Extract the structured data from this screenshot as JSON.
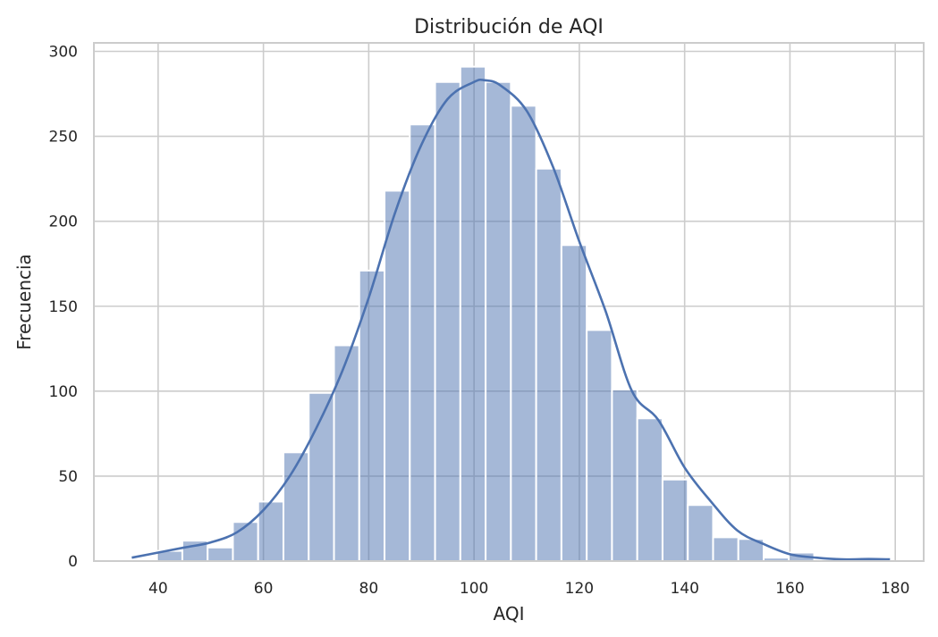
{
  "chart_data": {
    "type": "bar",
    "title": "Distribución de AQI",
    "xlabel": "AQI",
    "ylabel": "Frecuencia",
    "xlim": [
      27.8,
      185.4
    ],
    "ylim": [
      0,
      305
    ],
    "xticks": [
      40,
      60,
      80,
      100,
      120,
      140,
      160,
      180
    ],
    "yticks": [
      0,
      50,
      100,
      150,
      200,
      250,
      300
    ],
    "grid": true,
    "bar_color": "#4c72b0",
    "bar_alpha": 0.5,
    "kde_color": "#4c72b0",
    "bins": [
      {
        "x0": 35.0,
        "x1": 39.8,
        "count": 1
      },
      {
        "x0": 39.8,
        "x1": 44.6,
        "count": 6
      },
      {
        "x0": 44.6,
        "x1": 49.4,
        "count": 12
      },
      {
        "x0": 49.4,
        "x1": 54.2,
        "count": 8
      },
      {
        "x0": 54.2,
        "x1": 59.0,
        "count": 23
      },
      {
        "x0": 59.0,
        "x1": 63.8,
        "count": 35
      },
      {
        "x0": 63.8,
        "x1": 68.6,
        "count": 64
      },
      {
        "x0": 68.6,
        "x1": 73.4,
        "count": 99
      },
      {
        "x0": 73.4,
        "x1": 78.2,
        "count": 127
      },
      {
        "x0": 78.2,
        "x1": 83.0,
        "count": 171
      },
      {
        "x0": 83.0,
        "x1": 87.8,
        "count": 218
      },
      {
        "x0": 87.8,
        "x1": 92.6,
        "count": 257
      },
      {
        "x0": 92.6,
        "x1": 97.4,
        "count": 282
      },
      {
        "x0": 97.4,
        "x1": 102.2,
        "count": 291
      },
      {
        "x0": 102.2,
        "x1": 107.0,
        "count": 282
      },
      {
        "x0": 107.0,
        "x1": 111.8,
        "count": 268
      },
      {
        "x0": 111.8,
        "x1": 116.6,
        "count": 231
      },
      {
        "x0": 116.6,
        "x1": 121.4,
        "count": 186
      },
      {
        "x0": 121.4,
        "x1": 126.2,
        "count": 136
      },
      {
        "x0": 126.2,
        "x1": 131.0,
        "count": 101
      },
      {
        "x0": 131.0,
        "x1": 135.8,
        "count": 84
      },
      {
        "x0": 135.8,
        "x1": 140.6,
        "count": 48
      },
      {
        "x0": 140.6,
        "x1": 145.4,
        "count": 33
      },
      {
        "x0": 145.4,
        "x1": 150.2,
        "count": 14
      },
      {
        "x0": 150.2,
        "x1": 155.0,
        "count": 13
      },
      {
        "x0": 155.0,
        "x1": 159.8,
        "count": 2
      },
      {
        "x0": 159.8,
        "x1": 164.6,
        "count": 5
      },
      {
        "x0": 164.6,
        "x1": 169.4,
        "count": 1
      },
      {
        "x0": 169.4,
        "x1": 174.2,
        "count": 1
      },
      {
        "x0": 174.2,
        "x1": 179.0,
        "count": 1
      }
    ],
    "kde": [
      [
        35,
        2
      ],
      [
        40,
        5
      ],
      [
        45,
        8
      ],
      [
        50,
        11
      ],
      [
        55,
        17
      ],
      [
        60,
        30
      ],
      [
        65,
        50
      ],
      [
        70,
        78
      ],
      [
        75,
        112
      ],
      [
        80,
        155
      ],
      [
        85,
        205
      ],
      [
        90,
        245
      ],
      [
        95,
        272
      ],
      [
        100,
        282
      ],
      [
        102,
        283
      ],
      [
        105,
        280
      ],
      [
        110,
        265
      ],
      [
        115,
        232
      ],
      [
        120,
        188
      ],
      [
        125,
        147
      ],
      [
        130,
        100
      ],
      [
        135,
        83
      ],
      [
        140,
        55
      ],
      [
        145,
        35
      ],
      [
        150,
        18
      ],
      [
        155,
        10
      ],
      [
        160,
        4
      ],
      [
        165,
        2
      ],
      [
        170,
        1
      ],
      [
        175,
        1.2
      ],
      [
        179,
        1
      ]
    ]
  }
}
